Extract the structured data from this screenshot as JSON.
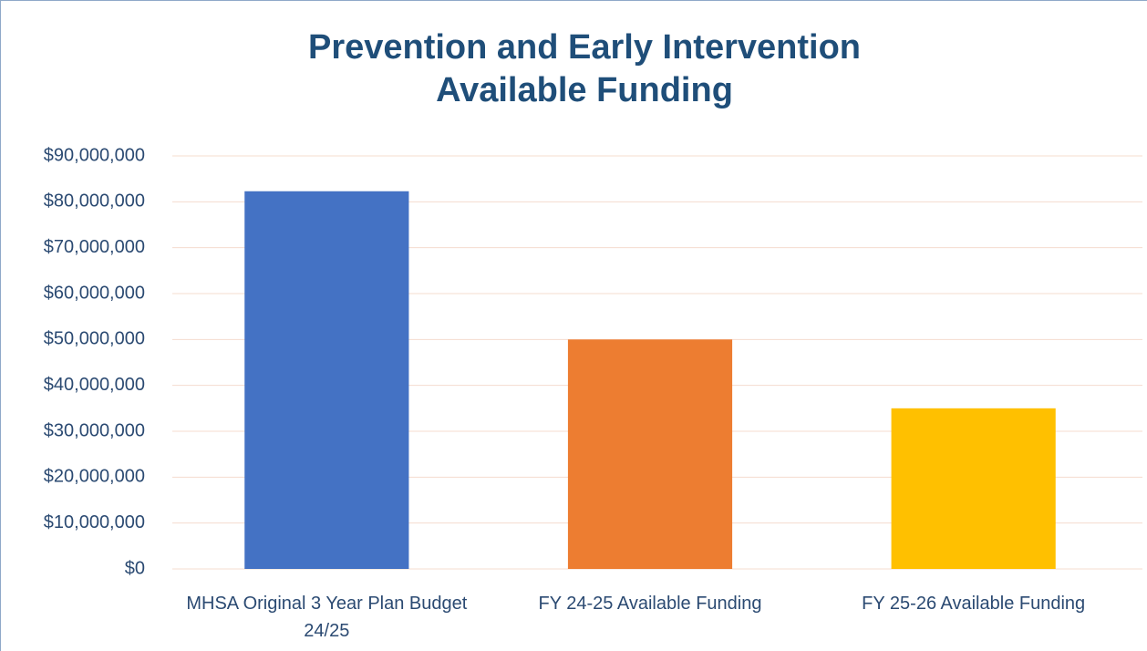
{
  "chart_data": {
    "type": "bar",
    "title": "Prevention and Early Intervention Available Funding",
    "categories": [
      "MHSA Original 3 Year Plan Budget 24/25",
      "FY 24-25 Available Funding",
      "FY 25-26 Available Funding"
    ],
    "values": [
      82300000,
      50000000,
      35000000
    ],
    "colors": [
      "#4472c4",
      "#ed7d31",
      "#ffc000"
    ],
    "ylim": [
      0,
      90000000
    ],
    "yticks": [
      {
        "value": 0,
        "label": "$0"
      },
      {
        "value": 10000000,
        "label": "$10,000,000"
      },
      {
        "value": 20000000,
        "label": "$20,000,000"
      },
      {
        "value": 30000000,
        "label": "$30,000,000"
      },
      {
        "value": 40000000,
        "label": "$40,000,000"
      },
      {
        "value": 50000000,
        "label": "$50,000,000"
      },
      {
        "value": 60000000,
        "label": "$60,000,000"
      },
      {
        "value": 70000000,
        "label": "$70,000,000"
      },
      {
        "value": 80000000,
        "label": "$80,000,000"
      },
      {
        "value": 90000000,
        "label": "$90,000,000"
      }
    ],
    "grid": true
  }
}
